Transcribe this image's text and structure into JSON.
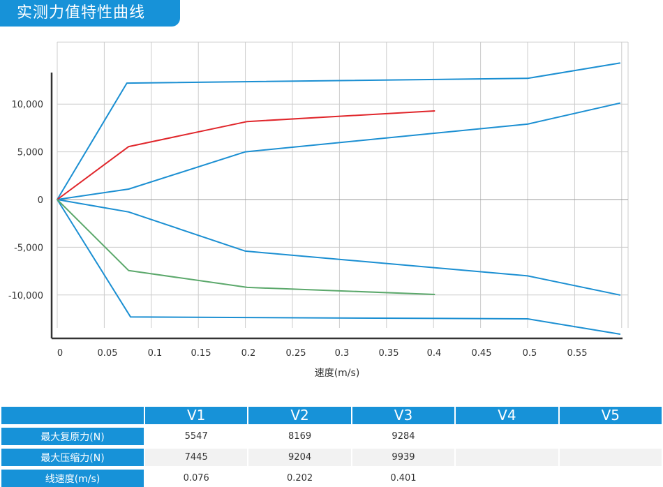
{
  "title": "实测力值特性曲线",
  "chart_data": {
    "type": "line",
    "title": "",
    "xlabel": "速度(m/s)",
    "ylabel": "",
    "xlim": [
      0,
      0.6
    ],
    "ylim": [
      -14500,
      16500
    ],
    "x_ticks": [
      "0",
      "0.05",
      "0.1",
      "0.15",
      "0.2",
      "0.25",
      "0.3",
      "0.35",
      "0.4",
      "0.45",
      "0.5",
      "0.55"
    ],
    "y_ticks": [
      "10,000",
      "5,000",
      "0",
      "-5,000",
      "-10,000"
    ],
    "y_tick_values": [
      10000,
      5000,
      0,
      -5000,
      -10000
    ],
    "grid": true,
    "legend": "none",
    "series": [
      {
        "color": "#1b8fd2",
        "points": [
          [
            0,
            0
          ],
          [
            0.074,
            12200
          ],
          [
            0.5,
            12700
          ],
          [
            0.598,
            14300
          ]
        ]
      },
      {
        "color": "#1b8fd2",
        "points": [
          [
            0,
            0
          ],
          [
            0.076,
            1100
          ],
          [
            0.2,
            5000
          ],
          [
            0.5,
            7900
          ],
          [
            0.598,
            10100
          ]
        ]
      },
      {
        "color": "#1b8fd2",
        "points": [
          [
            0,
            0
          ],
          [
            0.076,
            -1300
          ],
          [
            0.2,
            -5400
          ],
          [
            0.5,
            -8000
          ],
          [
            0.598,
            -10000
          ]
        ]
      },
      {
        "color": "#1b8fd2",
        "points": [
          [
            0,
            0
          ],
          [
            0.078,
            -12300
          ],
          [
            0.5,
            -12500
          ],
          [
            0.598,
            -14100
          ]
        ]
      },
      {
        "color": "#e0262b",
        "points": [
          [
            0,
            0
          ],
          [
            0.076,
            5547
          ],
          [
            0.202,
            8169
          ],
          [
            0.401,
            9284
          ]
        ]
      },
      {
        "color": "#5ba86b",
        "points": [
          [
            0,
            0
          ],
          [
            0.076,
            -7445
          ],
          [
            0.202,
            -9204
          ],
          [
            0.401,
            -9939
          ]
        ]
      }
    ]
  },
  "table": {
    "headers": [
      "V1",
      "V2",
      "V3",
      "V4",
      "V5"
    ],
    "rows": [
      {
        "label": "最大复原力(N)",
        "values": [
          "5547",
          "8169",
          "9284",
          "",
          ""
        ]
      },
      {
        "label": "最大压缩力(N)",
        "values": [
          "7445",
          "9204",
          "9939",
          "",
          ""
        ]
      },
      {
        "label": "线速度(m/s)",
        "values": [
          "0.076",
          "0.202",
          "0.401",
          "",
          ""
        ]
      }
    ]
  }
}
